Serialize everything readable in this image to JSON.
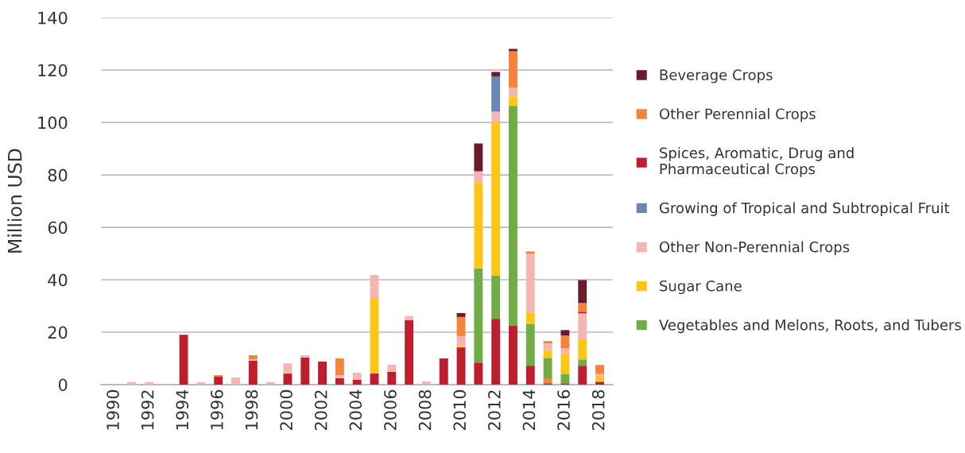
{
  "chart_data": {
    "type": "bar",
    "stacked": true,
    "ylabel": "Million USD",
    "categories": [
      "1990",
      null,
      "1992",
      null,
      "1994",
      null,
      "1996",
      null,
      "1998",
      null,
      "2000",
      null,
      "2002",
      null,
      "2004",
      null,
      "2006",
      null,
      "2008",
      null,
      "2010",
      null,
      "2012",
      null,
      "2014",
      null,
      "2016",
      null,
      "2018"
    ],
    "series": [
      {
        "color": "#be1e2d",
        "values": [
          null,
          null,
          null,
          null,
          19,
          null,
          3,
          null,
          9.1,
          null,
          4.2,
          10.3,
          8.8,
          2.4,
          1.8,
          4.2,
          4.9,
          24.6,
          null,
          10.0,
          14.2,
          8.4,
          25.1,
          22.6,
          7.2,
          0.5,
          0.5,
          7.2,
          1.1
        ]
      },
      {
        "color": "#f5843b",
        "values": [
          null,
          null,
          null,
          null,
          null,
          null,
          null,
          null,
          null,
          null,
          null,
          null,
          null,
          null,
          null,
          null,
          null,
          null,
          null,
          null,
          null,
          null,
          null,
          null,
          null,
          1.9,
          null,
          null,
          null
        ]
      },
      {
        "name": "Vegetables and Melons, Roots, and Tubers",
        "color": "#70ad47",
        "values": [
          null,
          null,
          null,
          null,
          null,
          null,
          null,
          null,
          null,
          null,
          null,
          null,
          null,
          null,
          null,
          null,
          null,
          null,
          null,
          null,
          null,
          36.0,
          16.6,
          83.7,
          16.0,
          7.8,
          3.6,
          2.4,
          null
        ]
      },
      {
        "name": "Sugar Cane",
        "color": "#ffc614",
        "values": [
          null,
          null,
          null,
          null,
          null,
          null,
          null,
          null,
          null,
          null,
          null,
          null,
          null,
          null,
          null,
          28.8,
          null,
          null,
          null,
          null,
          0.4,
          32.8,
          58.5,
          3.6,
          4.3,
          3.0,
          7.6,
          7.6,
          1.9
        ]
      },
      {
        "name": "Other Non-Perennial Crops",
        "color": "#f4b5b3",
        "values": [
          null,
          1,
          1,
          null,
          null,
          1,
          null,
          2.7,
          0.6,
          1,
          3.9,
          0.9,
          null,
          1.2,
          2.7,
          8.8,
          2.7,
          1.5,
          1.2,
          null,
          3.9,
          4.2,
          3.9,
          3.3,
          22.4,
          2.5,
          2.1,
          10.0,
          1.1
        ]
      },
      {
        "name": "Growing of Tropical and Subtropical Fruit",
        "color": "#6a86b2",
        "values": [
          null,
          null,
          null,
          null,
          null,
          null,
          null,
          null,
          null,
          null,
          null,
          null,
          null,
          null,
          null,
          null,
          null,
          null,
          null,
          null,
          null,
          null,
          13.4,
          null,
          null,
          null,
          null,
          null,
          null
        ]
      },
      {
        "name": "Spices, Aromatic, Drug and\nPharmaceutical Crops",
        "color": "#be1e2d",
        "values": [
          null,
          null,
          null,
          null,
          null,
          null,
          null,
          null,
          null,
          null,
          null,
          null,
          null,
          null,
          null,
          null,
          null,
          null,
          null,
          null,
          null,
          null,
          null,
          null,
          null,
          null,
          null,
          0.6,
          null
        ]
      },
      {
        "name": "Other Perennial Crops",
        "color": "#f5843b",
        "values": [
          null,
          null,
          null,
          null,
          null,
          null,
          0.6,
          null,
          1.5,
          null,
          null,
          null,
          null,
          6.4,
          null,
          null,
          null,
          null,
          null,
          null,
          7.3,
          null,
          null,
          14.0,
          0.9,
          0.9,
          4.9,
          3.3,
          3.4
        ]
      },
      {
        "name": "Beverage Crops",
        "color": "#6b1c2c",
        "values": [
          null,
          null,
          null,
          null,
          null,
          null,
          null,
          null,
          null,
          null,
          null,
          null,
          null,
          null,
          null,
          null,
          null,
          null,
          null,
          null,
          1.5,
          10.6,
          1.8,
          0.9,
          null,
          null,
          2.1,
          8.8,
          null
        ]
      }
    ],
    "ylim": [
      0,
      140
    ],
    "yticks": [
      0,
      20,
      40,
      60,
      80,
      100,
      120,
      140
    ],
    "grid": "y",
    "legend": "right"
  }
}
